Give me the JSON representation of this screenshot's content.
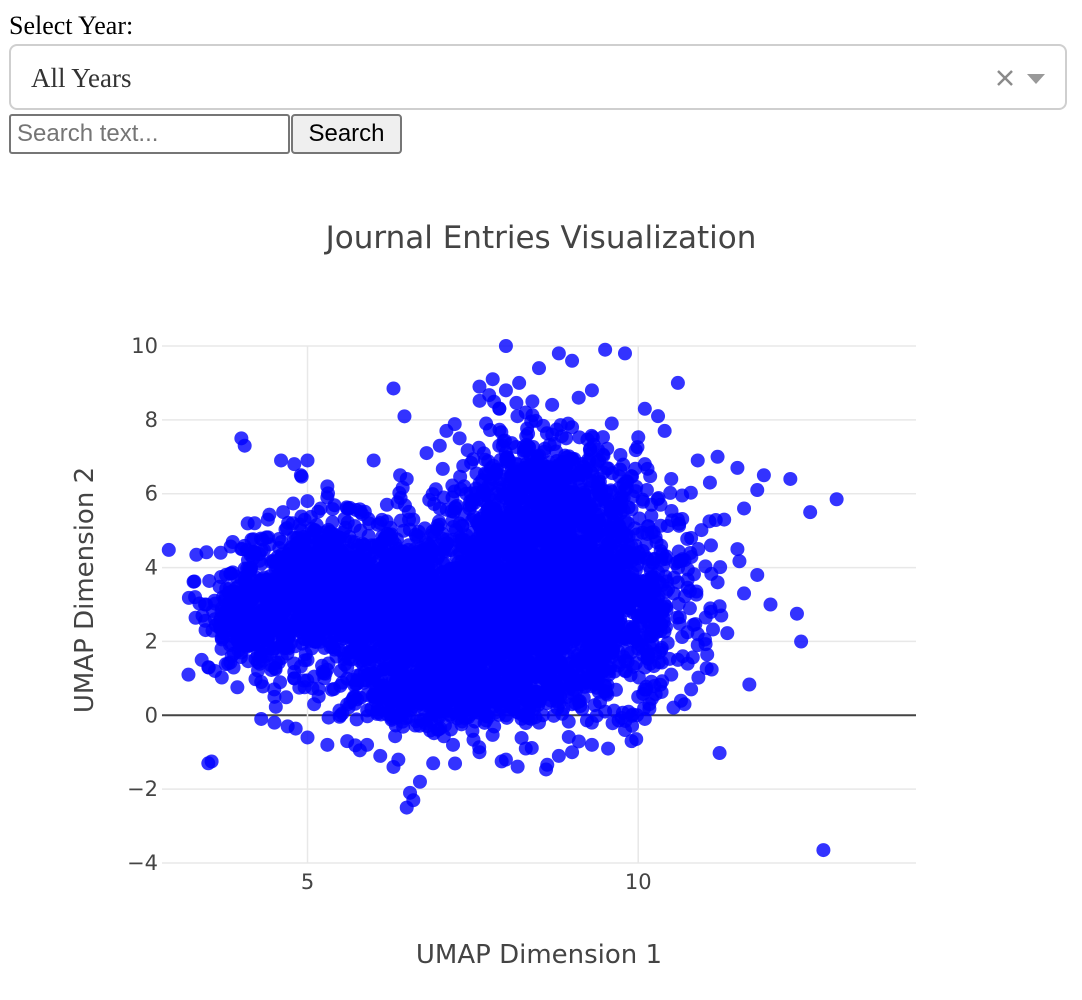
{
  "controls": {
    "year_label": "Select Year:",
    "year_selected": "All Years",
    "search_placeholder": "Search text...",
    "search_value": "",
    "search_button": "Search"
  },
  "chart_data": {
    "type": "scatter",
    "title": "Journal Entries Visualization",
    "xlabel": "UMAP Dimension 1",
    "ylabel": "UMAP Dimension 2",
    "xlim": [
      2.8,
      14.2
    ],
    "ylim": [
      -4,
      10
    ],
    "xticks": [
      5,
      10
    ],
    "yticks": [
      -4,
      -2,
      0,
      2,
      4,
      6,
      8,
      10
    ],
    "grid": true,
    "marker_color": "#0000ff",
    "points": [
      [
        3.2,
        1.1
      ],
      [
        3.5,
        1.3
      ],
      [
        3.4,
        1.5
      ],
      [
        3.6,
        1.2
      ],
      [
        3.8,
        1.4
      ],
      [
        3.3,
        3.2
      ],
      [
        3.45,
        3.0
      ],
      [
        3.7,
        2.8
      ],
      [
        3.6,
        2.6
      ],
      [
        3.9,
        2.7
      ],
      [
        3.9,
        2.5
      ],
      [
        4.1,
        2.3
      ],
      [
        3.95,
        2.1
      ],
      [
        3.7,
        1.8
      ],
      [
        4.0,
        1.7
      ],
      [
        3.5,
        -1.3
      ],
      [
        3.55,
        -1.25
      ],
      [
        4.0,
        7.5
      ],
      [
        4.05,
        7.3
      ],
      [
        4.0,
        4.5
      ],
      [
        4.2,
        4.4
      ],
      [
        4.1,
        4.2
      ],
      [
        4.3,
        4.1
      ],
      [
        4.2,
        5.2
      ],
      [
        4.4,
        5.3
      ],
      [
        4.6,
        6.9
      ],
      [
        4.8,
        6.8
      ],
      [
        5.0,
        6.9
      ],
      [
        4.9,
        6.5
      ],
      [
        5.3,
        6.2
      ],
      [
        5.0,
        5.8
      ],
      [
        5.2,
        5.6
      ],
      [
        5.6,
        5.6
      ],
      [
        5.3,
        5.9
      ],
      [
        5.8,
        5.5
      ],
      [
        6.2,
        5.7
      ],
      [
        6.5,
        6.4
      ],
      [
        6.8,
        7.1
      ],
      [
        7.0,
        7.3
      ],
      [
        7.3,
        7.5
      ],
      [
        7.6,
        8.9
      ],
      [
        7.8,
        9.1
      ],
      [
        8.0,
        8.8
      ],
      [
        8.2,
        9.0
      ],
      [
        8.5,
        9.4
      ],
      [
        8.8,
        9.8
      ],
      [
        9.0,
        9.6
      ],
      [
        9.3,
        8.8
      ],
      [
        9.5,
        9.9
      ],
      [
        9.8,
        9.8
      ],
      [
        7.1,
        7.7
      ],
      [
        7.7,
        7.9
      ],
      [
        8.3,
        8.2
      ],
      [
        9.0,
        7.8
      ],
      [
        9.6,
        7.9
      ],
      [
        10.1,
        8.3
      ],
      [
        10.3,
        8.1
      ],
      [
        10.4,
        7.7
      ],
      [
        10.6,
        9.0
      ],
      [
        6.3,
        8.85
      ],
      [
        8.0,
        10.0
      ],
      [
        10.1,
        6.8
      ],
      [
        10.5,
        6.4
      ],
      [
        10.9,
        6.9
      ],
      [
        11.2,
        7.0
      ],
      [
        11.5,
        6.7
      ],
      [
        11.9,
        6.5
      ],
      [
        12.3,
        6.4
      ],
      [
        12.6,
        5.5
      ],
      [
        13.0,
        5.85
      ],
      [
        11.8,
        6.1
      ],
      [
        11.6,
        5.6
      ],
      [
        11.3,
        5.3
      ],
      [
        11.1,
        4.6
      ],
      [
        11.5,
        4.5
      ],
      [
        11.8,
        3.8
      ],
      [
        11.2,
        3.6
      ],
      [
        11.6,
        3.3
      ],
      [
        12.0,
        3.0
      ],
      [
        12.4,
        2.75
      ],
      [
        11.1,
        2.8
      ],
      [
        10.9,
        2.2
      ],
      [
        10.9,
        1.9
      ],
      [
        10.6,
        1.5
      ],
      [
        10.5,
        1.1
      ],
      [
        10.8,
        0.7
      ],
      [
        10.7,
        0.3
      ],
      [
        10.1,
        -0.1
      ],
      [
        9.8,
        -0.4
      ],
      [
        9.9,
        -0.7
      ],
      [
        9.3,
        -0.8
      ],
      [
        9.0,
        -1.0
      ],
      [
        8.8,
        -1.1
      ],
      [
        8.3,
        -0.9
      ],
      [
        8.0,
        -1.2
      ],
      [
        7.6,
        -1.0
      ],
      [
        7.2,
        -0.8
      ],
      [
        6.9,
        -1.3
      ],
      [
        6.7,
        -1.8
      ],
      [
        6.55,
        -2.1
      ],
      [
        6.5,
        -2.5
      ],
      [
        6.6,
        -2.3
      ],
      [
        6.3,
        -1.4
      ],
      [
        6.1,
        -1.1
      ],
      [
        5.9,
        -0.8
      ],
      [
        5.6,
        -0.7
      ],
      [
        5.3,
        -0.8
      ],
      [
        5.0,
        -0.6
      ],
      [
        4.7,
        -0.3
      ],
      [
        4.5,
        -0.2
      ],
      [
        4.3,
        -0.1
      ],
      [
        4.5,
        0.5
      ],
      [
        4.3,
        0.9
      ],
      [
        4.8,
        1.0
      ],
      [
        5.1,
        0.3
      ],
      [
        5.5,
        0.0
      ],
      [
        5.7,
        0.5
      ],
      [
        12.8,
        -3.65
      ],
      [
        6.5,
        0.3
      ],
      [
        7.0,
        0.1
      ],
      [
        7.5,
        0.2
      ],
      [
        8.0,
        0.0
      ],
      [
        8.5,
        -0.2
      ],
      [
        9.0,
        0.3
      ],
      [
        9.5,
        0.1
      ],
      [
        10.0,
        0.5
      ],
      [
        4.4,
        3.6
      ],
      [
        4.6,
        3.9
      ],
      [
        5.0,
        4.6
      ],
      [
        5.4,
        4.9
      ],
      [
        5.8,
        5.0
      ],
      [
        6.2,
        4.9
      ],
      [
        6.6,
        5.3
      ],
      [
        7.0,
        5.6
      ],
      [
        7.4,
        6.0
      ],
      [
        7.8,
        6.4
      ],
      [
        8.2,
        6.5
      ],
      [
        8.6,
        6.7
      ],
      [
        9.0,
        6.6
      ],
      [
        9.4,
        6.4
      ],
      [
        9.8,
        6.1
      ],
      [
        10.2,
        5.7
      ],
      [
        10.6,
        5.3
      ],
      [
        10.8,
        4.8
      ],
      [
        10.7,
        4.2
      ],
      [
        10.6,
        3.6
      ],
      [
        10.4,
        3.0
      ],
      [
        10.2,
        2.4
      ],
      [
        10.0,
        1.8
      ],
      [
        9.8,
        1.2
      ],
      [
        9.5,
        0.8
      ],
      [
        9.0,
        0.6
      ],
      [
        8.5,
        0.5
      ],
      [
        8.0,
        0.6
      ],
      [
        7.5,
        0.7
      ],
      [
        7.0,
        0.8
      ],
      [
        6.5,
        0.9
      ],
      [
        6.0,
        1.0
      ],
      [
        5.5,
        1.2
      ],
      [
        5.0,
        1.5
      ],
      [
        4.6,
        1.9
      ],
      [
        4.4,
        2.4
      ],
      [
        4.5,
        2.9
      ],
      [
        4.7,
        3.3
      ],
      [
        6.0,
        6.9
      ],
      [
        6.4,
        6.5
      ],
      [
        8.7,
        7.6
      ],
      [
        8.4,
        8.5
      ],
      [
        9.1,
        8.6
      ],
      [
        7.9,
        8.3
      ]
    ],
    "dense_regions": [
      {
        "cx": 5.2,
        "cy": 3.4,
        "rx": 1.2,
        "ry": 1.7,
        "n": 850
      },
      {
        "cx": 6.7,
        "cy": 2.6,
        "rx": 1.3,
        "ry": 2.2,
        "n": 950
      },
      {
        "cx": 8.1,
        "cy": 3.0,
        "rx": 1.5,
        "ry": 2.6,
        "n": 1200
      },
      {
        "cx": 9.4,
        "cy": 3.3,
        "rx": 1.3,
        "ry": 2.6,
        "n": 1000
      },
      {
        "cx": 8.5,
        "cy": 6.0,
        "rx": 1.1,
        "ry": 1.6,
        "n": 500
      },
      {
        "cx": 4.2,
        "cy": 2.6,
        "rx": 0.6,
        "ry": 1.2,
        "n": 250
      },
      {
        "cx": 7.2,
        "cy": 0.6,
        "rx": 1.6,
        "ry": 0.7,
        "n": 400
      }
    ]
  }
}
